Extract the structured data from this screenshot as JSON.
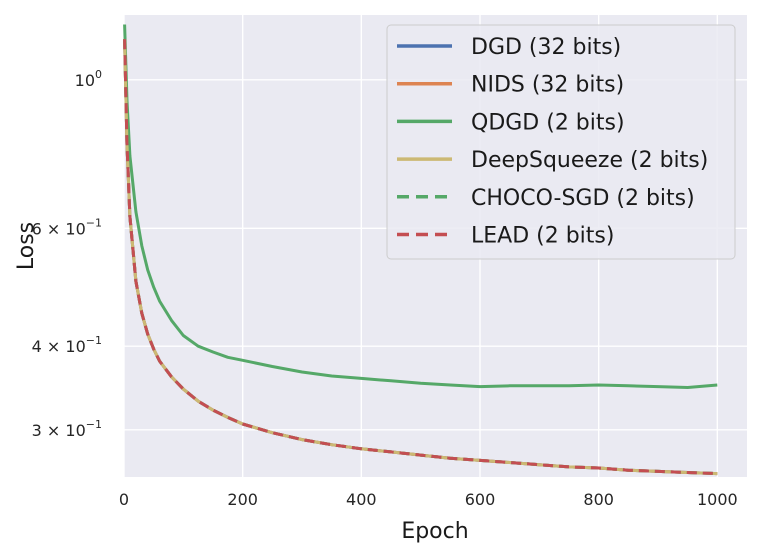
{
  "chart_data": {
    "type": "line",
    "title": "",
    "xlabel": "Epoch",
    "ylabel": "Loss",
    "yscale": "log",
    "xlim": [
      0,
      1050
    ],
    "ylim": [
      0.255,
      1.25
    ],
    "grid": true,
    "legend_position": "top-right",
    "x_ticks": [
      {
        "value": 0,
        "label": "0"
      },
      {
        "value": 200,
        "label": "200"
      },
      {
        "value": 400,
        "label": "400"
      },
      {
        "value": 600,
        "label": "600"
      },
      {
        "value": 800,
        "label": "800"
      },
      {
        "value": 1000,
        "label": "1000"
      }
    ],
    "y_ticks": [
      {
        "value": 1.0,
        "base": "10",
        "exp": "0"
      },
      {
        "value": 0.6,
        "base": "6 × 10",
        "exp": "−1"
      },
      {
        "value": 0.4,
        "base": "4 × 10",
        "exp": "−1"
      },
      {
        "value": 0.3,
        "base": "3 × 10",
        "exp": "−1"
      }
    ],
    "x": [
      1,
      5,
      10,
      20,
      30,
      40,
      50,
      60,
      80,
      100,
      125,
      150,
      175,
      200,
      250,
      300,
      350,
      400,
      450,
      500,
      550,
      600,
      650,
      700,
      750,
      800,
      850,
      900,
      950,
      1000
    ],
    "series": [
      {
        "name": "DGD (32 bits)",
        "color": "#4c72b0",
        "style": "solid",
        "values": [
          1.15,
          0.8,
          0.625,
          0.5,
          0.448,
          0.417,
          0.396,
          0.38,
          0.36,
          0.345,
          0.331,
          0.321,
          0.313,
          0.306,
          0.297,
          0.29,
          0.285,
          0.281,
          0.278,
          0.275,
          0.272,
          0.27,
          0.268,
          0.266,
          0.264,
          0.263,
          0.261,
          0.26,
          0.259,
          0.258
        ]
      },
      {
        "name": "NIDS (32 bits)",
        "color": "#dd8452",
        "style": "solid",
        "values": [
          1.15,
          0.8,
          0.625,
          0.5,
          0.448,
          0.417,
          0.396,
          0.38,
          0.36,
          0.345,
          0.331,
          0.321,
          0.313,
          0.306,
          0.297,
          0.29,
          0.285,
          0.281,
          0.278,
          0.275,
          0.272,
          0.27,
          0.268,
          0.266,
          0.264,
          0.263,
          0.261,
          0.26,
          0.259,
          0.258
        ]
      },
      {
        "name": "QDGD (2 bits)",
        "color": "#55a868",
        "style": "solid",
        "values": [
          1.21,
          0.93,
          0.77,
          0.635,
          0.565,
          0.52,
          0.49,
          0.467,
          0.437,
          0.415,
          0.4,
          0.392,
          0.385,
          0.381,
          0.373,
          0.366,
          0.361,
          0.358,
          0.355,
          0.352,
          0.35,
          0.348,
          0.349,
          0.349,
          0.349,
          0.35,
          0.349,
          0.348,
          0.347,
          0.35
        ]
      },
      {
        "name": "DeepSqueeze (2 bits)",
        "color": "#ccb974",
        "style": "solid",
        "values": [
          1.15,
          0.8,
          0.625,
          0.5,
          0.448,
          0.417,
          0.396,
          0.38,
          0.36,
          0.345,
          0.331,
          0.321,
          0.313,
          0.306,
          0.297,
          0.29,
          0.285,
          0.281,
          0.278,
          0.275,
          0.272,
          0.27,
          0.268,
          0.266,
          0.264,
          0.263,
          0.261,
          0.26,
          0.259,
          0.258
        ]
      },
      {
        "name": "CHOCO-SGD (2 bits)",
        "color": "#55a868",
        "style": "dashed",
        "values": [
          1.15,
          0.8,
          0.625,
          0.5,
          0.448,
          0.417,
          0.396,
          0.38,
          0.36,
          0.345,
          0.331,
          0.321,
          0.313,
          0.306,
          0.297,
          0.29,
          0.285,
          0.281,
          0.278,
          0.275,
          0.272,
          0.27,
          0.268,
          0.266,
          0.264,
          0.263,
          0.261,
          0.26,
          0.259,
          0.258
        ]
      },
      {
        "name": "LEAD (2 bits)",
        "color": "#c44e52",
        "style": "dashed",
        "values": [
          1.15,
          0.8,
          0.625,
          0.5,
          0.448,
          0.417,
          0.396,
          0.38,
          0.36,
          0.345,
          0.331,
          0.321,
          0.313,
          0.306,
          0.297,
          0.29,
          0.285,
          0.281,
          0.278,
          0.275,
          0.272,
          0.27,
          0.268,
          0.266,
          0.264,
          0.263,
          0.261,
          0.26,
          0.259,
          0.258
        ]
      }
    ]
  }
}
